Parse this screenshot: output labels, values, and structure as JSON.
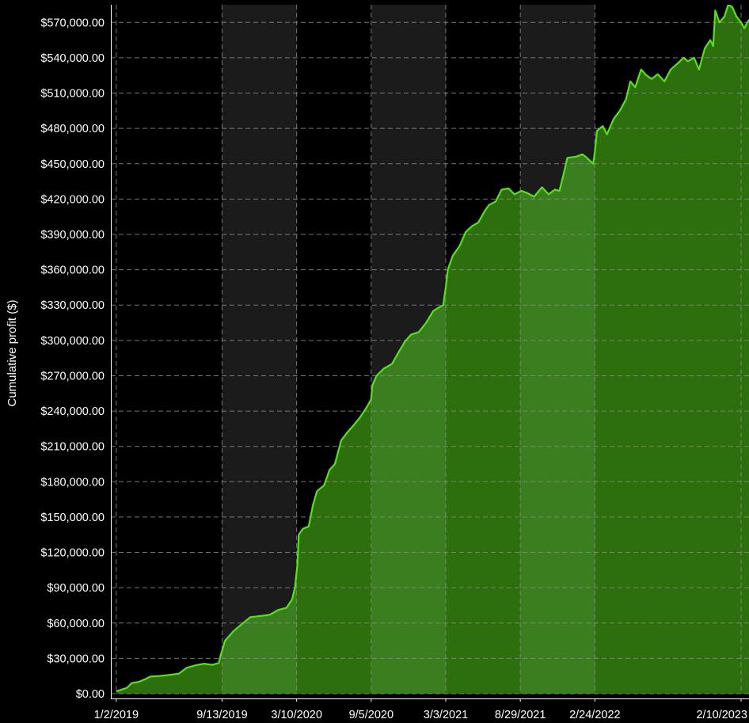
{
  "chart_data": {
    "type": "area",
    "ylabel": "Cumulative profit ($)",
    "xlabel": "",
    "ylim": [
      0,
      585000
    ],
    "grid": true,
    "colors": {
      "background": "#000000",
      "band_light": "#1b1b1b",
      "grid": "#8a8a8a",
      "line": "#58e01c",
      "fill_light": "#3b7e20",
      "fill_dark": "#2c6f0c",
      "text": "#ffffff"
    },
    "y_ticks": [
      {
        "value": 0,
        "label": "$0.00"
      },
      {
        "value": 30000,
        "label": "$30,000.00"
      },
      {
        "value": 60000,
        "label": "$60,000.00"
      },
      {
        "value": 90000,
        "label": "$90,000.00"
      },
      {
        "value": 120000,
        "label": "$120,000.00"
      },
      {
        "value": 150000,
        "label": "$150,000.00"
      },
      {
        "value": 180000,
        "label": "$180,000.00"
      },
      {
        "value": 210000,
        "label": "$210,000.00"
      },
      {
        "value": 240000,
        "label": "$240,000.00"
      },
      {
        "value": 270000,
        "label": "$270,000.00"
      },
      {
        "value": 300000,
        "label": "$300,000.00"
      },
      {
        "value": 330000,
        "label": "$330,000.00"
      },
      {
        "value": 360000,
        "label": "$360,000.00"
      },
      {
        "value": 390000,
        "label": "$390,000.00"
      },
      {
        "value": 420000,
        "label": "$420,000.00"
      },
      {
        "value": 450000,
        "label": "$450,000.00"
      },
      {
        "value": 480000,
        "label": "$480,000.00"
      },
      {
        "value": 510000,
        "label": "$510,000.00"
      },
      {
        "value": 540000,
        "label": "$540,000.00"
      },
      {
        "value": 570000,
        "label": "$570,000.00"
      }
    ],
    "x_range": [
      "2018-12-20",
      "2023-03-01"
    ],
    "x_ticks": [
      "1/2/2019",
      "9/13/2019",
      "3/10/2020",
      "9/5/2020",
      "3/3/2021",
      "8/29/2021",
      "2/24/2022",
      "2/10/2023"
    ],
    "x_tick_dates": [
      "2019-01-02",
      "2019-09-13",
      "2020-03-10",
      "2020-09-05",
      "2021-03-03",
      "2021-08-29",
      "2022-02-24",
      "2023-02-10"
    ],
    "shaded_bands": [
      [
        "2019-09-13",
        "2020-03-10"
      ],
      [
        "2020-09-05",
        "2021-03-03"
      ],
      [
        "2021-08-29",
        "2022-02-24"
      ]
    ],
    "series": [
      {
        "points": [
          [
            "2019-01-02",
            2000
          ],
          [
            "2019-01-15",
            3500
          ],
          [
            "2019-01-28",
            5000
          ],
          [
            "2019-02-08",
            9000
          ],
          [
            "2019-02-25",
            10000
          ],
          [
            "2019-03-10",
            12000
          ],
          [
            "2019-03-25",
            14500
          ],
          [
            "2019-04-15",
            15000
          ],
          [
            "2019-05-10",
            16000
          ],
          [
            "2019-06-01",
            17000
          ],
          [
            "2019-06-20",
            22000
          ],
          [
            "2019-07-10",
            24000
          ],
          [
            "2019-08-01",
            25500
          ],
          [
            "2019-08-20",
            24500
          ],
          [
            "2019-09-05",
            26000
          ],
          [
            "2019-09-10",
            33000
          ],
          [
            "2019-09-20",
            45000
          ],
          [
            "2019-10-10",
            53000
          ],
          [
            "2019-10-30",
            59000
          ],
          [
            "2019-11-20",
            65000
          ],
          [
            "2019-12-15",
            66000
          ],
          [
            "2020-01-05",
            67000
          ],
          [
            "2020-01-25",
            71000
          ],
          [
            "2020-02-15",
            73000
          ],
          [
            "2020-02-28",
            80000
          ],
          [
            "2020-03-06",
            90000
          ],
          [
            "2020-03-12",
            110000
          ],
          [
            "2020-03-15",
            135000
          ],
          [
            "2020-03-25",
            140000
          ],
          [
            "2020-04-08",
            142000
          ],
          [
            "2020-04-18",
            160000
          ],
          [
            "2020-04-28",
            172000
          ],
          [
            "2020-05-15",
            177000
          ],
          [
            "2020-05-28",
            190000
          ],
          [
            "2020-06-10",
            195000
          ],
          [
            "2020-06-25",
            215000
          ],
          [
            "2020-07-10",
            222000
          ],
          [
            "2020-07-25",
            228000
          ],
          [
            "2020-08-10",
            235000
          ],
          [
            "2020-08-25",
            243000
          ],
          [
            "2020-09-05",
            250000
          ],
          [
            "2020-09-08",
            262000
          ],
          [
            "2020-09-18",
            270000
          ],
          [
            "2020-10-05",
            276000
          ],
          [
            "2020-10-25",
            280000
          ],
          [
            "2020-11-10",
            290000
          ],
          [
            "2020-11-25",
            299000
          ],
          [
            "2020-12-10",
            305000
          ],
          [
            "2020-12-28",
            307000
          ],
          [
            "2021-01-15",
            315000
          ],
          [
            "2021-02-01",
            325000
          ],
          [
            "2021-02-15",
            328000
          ],
          [
            "2021-02-25",
            330000
          ],
          [
            "2021-03-03",
            345000
          ],
          [
            "2021-03-08",
            360000
          ],
          [
            "2021-03-20",
            372000
          ],
          [
            "2021-04-05",
            380000
          ],
          [
            "2021-04-20",
            392000
          ],
          [
            "2021-05-05",
            397000
          ],
          [
            "2021-05-20",
            400000
          ],
          [
            "2021-06-05",
            410000
          ],
          [
            "2021-06-15",
            415000
          ],
          [
            "2021-07-01",
            418000
          ],
          [
            "2021-07-15",
            428000
          ],
          [
            "2021-08-01",
            429000
          ],
          [
            "2021-08-15",
            424000
          ],
          [
            "2021-09-01",
            427000
          ],
          [
            "2021-09-15",
            425000
          ],
          [
            "2021-10-01",
            422000
          ],
          [
            "2021-10-20",
            430000
          ],
          [
            "2021-11-05",
            424000
          ],
          [
            "2021-11-20",
            428000
          ],
          [
            "2021-12-01",
            427000
          ],
          [
            "2021-12-10",
            440000
          ],
          [
            "2021-12-20",
            455000
          ],
          [
            "2022-01-10",
            456000
          ],
          [
            "2022-01-25",
            458000
          ],
          [
            "2022-02-05",
            455000
          ],
          [
            "2022-02-20",
            450000
          ],
          [
            "2022-02-24",
            460000
          ],
          [
            "2022-03-01",
            478000
          ],
          [
            "2022-03-15",
            482000
          ],
          [
            "2022-03-25",
            475000
          ],
          [
            "2022-04-10",
            488000
          ],
          [
            "2022-04-25",
            495000
          ],
          [
            "2022-05-10",
            505000
          ],
          [
            "2022-05-20",
            520000
          ],
          [
            "2022-06-01",
            515000
          ],
          [
            "2022-06-15",
            530000
          ],
          [
            "2022-06-28",
            525000
          ],
          [
            "2022-07-10",
            522000
          ],
          [
            "2022-07-25",
            526000
          ],
          [
            "2022-08-10",
            520000
          ],
          [
            "2022-08-25",
            530000
          ],
          [
            "2022-09-10",
            535000
          ],
          [
            "2022-09-25",
            540000
          ],
          [
            "2022-10-05",
            537000
          ],
          [
            "2022-10-20",
            540000
          ],
          [
            "2022-11-01",
            530000
          ],
          [
            "2022-11-15",
            548000
          ],
          [
            "2022-11-28",
            555000
          ],
          [
            "2022-12-05",
            550000
          ],
          [
            "2022-12-10",
            580000
          ],
          [
            "2022-12-20",
            570000
          ],
          [
            "2023-01-01",
            575000
          ],
          [
            "2023-01-10",
            585000
          ],
          [
            "2023-01-20",
            583000
          ],
          [
            "2023-01-30",
            575000
          ],
          [
            "2023-02-10",
            570000
          ],
          [
            "2023-02-18",
            565000
          ],
          [
            "2023-02-25",
            570000
          ],
          [
            "2023-03-01",
            572000
          ]
        ]
      }
    ]
  }
}
